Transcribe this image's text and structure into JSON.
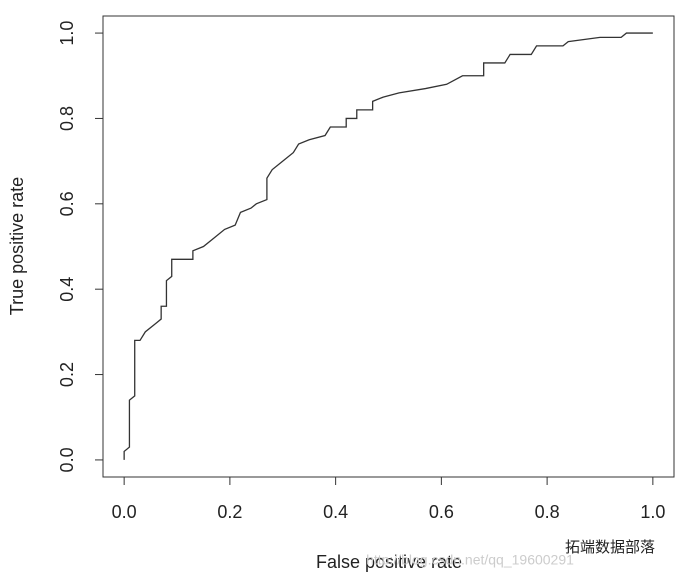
{
  "chart_data": {
    "type": "line",
    "xlabel": "False positive rate",
    "ylabel": "True positive rate",
    "xlim": [
      -0.04,
      1.04
    ],
    "ylim": [
      -0.04,
      1.04
    ],
    "xticks": [
      {
        "value": 0,
        "label": "0.0"
      },
      0.2,
      0.4,
      0.6,
      0.8,
      {
        "value": 1,
        "label": "1.0"
      }
    ],
    "yticks": [
      {
        "value": 0,
        "label": "0.0"
      },
      0.2,
      0.4,
      0.6,
      0.8,
      {
        "value": 1,
        "label": "1.0"
      }
    ],
    "color": "#333333",
    "x": [
      0,
      0,
      0.01,
      0.01,
      0.02,
      0.02,
      0.03,
      0.04,
      0.06,
      0.07,
      0.07,
      0.08,
      0.08,
      0.09,
      0.09,
      0.13,
      0.13,
      0.15,
      0.17,
      0.19,
      0.21,
      0.22,
      0.24,
      0.25,
      0.27,
      0.27,
      0.28,
      0.3,
      0.32,
      0.33,
      0.35,
      0.38,
      0.39,
      0.42,
      0.42,
      0.44,
      0.44,
      0.47,
      0.47,
      0.49,
      0.52,
      0.57,
      0.61,
      0.64,
      0.68,
      0.68,
      0.72,
      0.73,
      0.77,
      0.78,
      0.83,
      0.84,
      0.9,
      0.94,
      0.95,
      1.0
    ],
    "y": [
      0,
      0.02,
      0.03,
      0.14,
      0.15,
      0.28,
      0.28,
      0.3,
      0.32,
      0.33,
      0.36,
      0.36,
      0.42,
      0.43,
      0.47,
      0.47,
      0.49,
      0.5,
      0.52,
      0.54,
      0.55,
      0.58,
      0.59,
      0.6,
      0.61,
      0.66,
      0.68,
      0.7,
      0.72,
      0.74,
      0.75,
      0.76,
      0.78,
      0.78,
      0.8,
      0.8,
      0.82,
      0.82,
      0.84,
      0.85,
      0.86,
      0.87,
      0.88,
      0.9,
      0.9,
      0.93,
      0.93,
      0.95,
      0.95,
      0.97,
      0.97,
      0.98,
      0.99,
      0.99,
      1.0,
      1.0
    ],
    "watermark_url": "http://blog.csdn.net/qq_19600291",
    "watermark_name": "拓端数据部落"
  }
}
